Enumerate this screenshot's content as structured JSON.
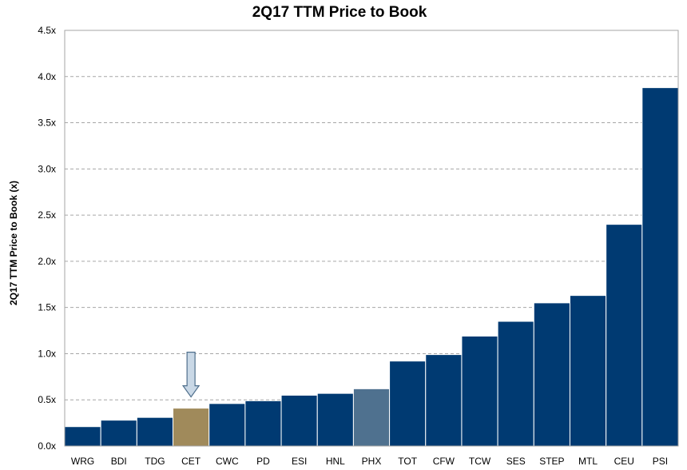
{
  "chart_data": {
    "type": "bar",
    "title": "2Q17 TTM Price to Book",
    "xlabel": "",
    "ylabel": "2Q17 TTM Price to Book (x)",
    "ylim": [
      0,
      4.5
    ],
    "yticks": [
      "0.0x",
      "0.5x",
      "1.0x",
      "1.5x",
      "2.0x",
      "2.5x",
      "3.0x",
      "3.5x",
      "4.0x",
      "4.5x"
    ],
    "categories": [
      "WRG",
      "BDI",
      "TDG",
      "CET",
      "CWC",
      "PD",
      "ESI",
      "HNL",
      "PHX",
      "TOT",
      "CFW",
      "TCW",
      "SES",
      "STEP",
      "MTL",
      "CEU",
      "PSI"
    ],
    "values": [
      0.21,
      0.28,
      0.31,
      0.41,
      0.46,
      0.49,
      0.55,
      0.57,
      0.62,
      0.92,
      0.99,
      1.19,
      1.35,
      1.55,
      1.63,
      2.4,
      3.88
    ],
    "grid": true,
    "legend": "none",
    "colors": {
      "default": "#003A72",
      "highlight": "#A08A5B",
      "secondary": "#4F718F",
      "arrow_fill": "#C9D8E6",
      "arrow_stroke": "#4F6F8C"
    },
    "bar_colors": [
      "default",
      "default",
      "default",
      "highlight",
      "default",
      "default",
      "default",
      "default",
      "secondary",
      "default",
      "default",
      "default",
      "default",
      "default",
      "default",
      "default",
      "default"
    ],
    "arrow_target": "CET"
  }
}
